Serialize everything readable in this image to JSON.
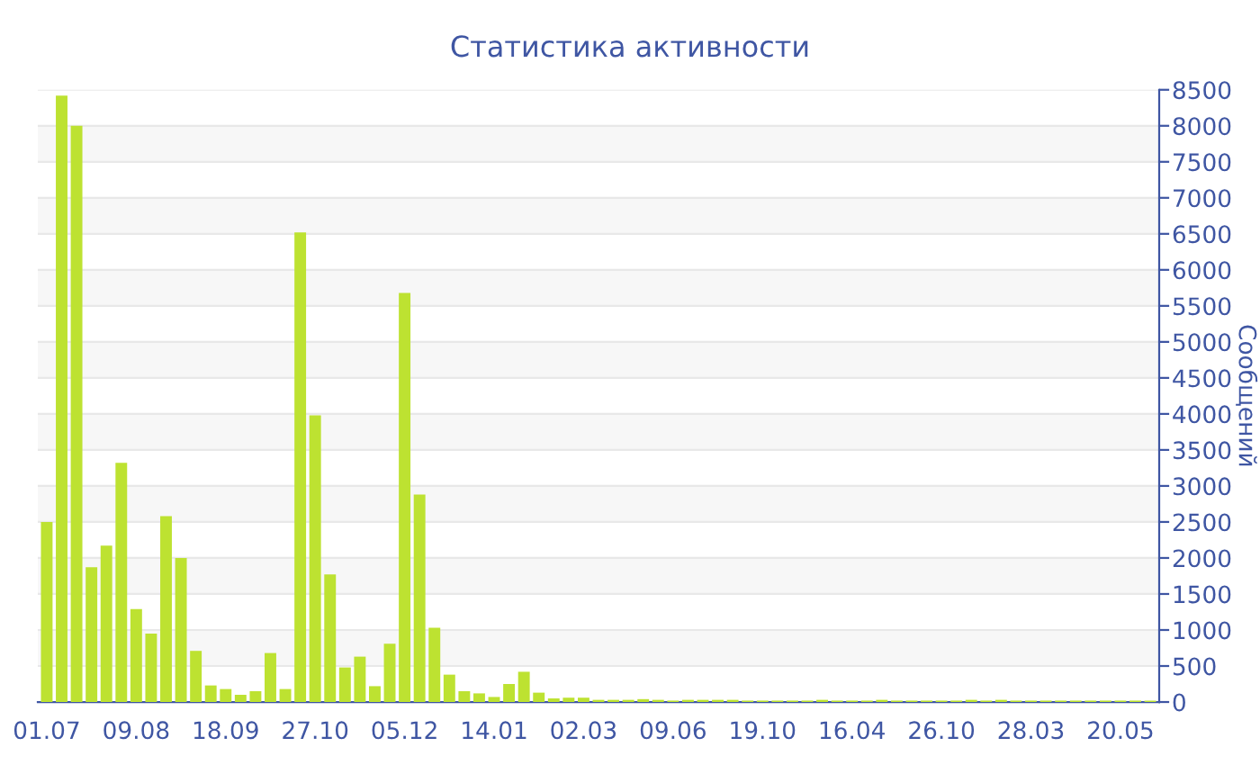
{
  "chart_data": {
    "type": "bar",
    "title": "Статистика активности",
    "ylabel": "Сообщений",
    "categories": [
      "01.07",
      null,
      null,
      null,
      null,
      null,
      "09.08",
      null,
      null,
      null,
      null,
      null,
      "18.09",
      null,
      null,
      null,
      null,
      null,
      "27.10",
      null,
      null,
      null,
      null,
      null,
      "05.12",
      null,
      null,
      null,
      null,
      null,
      "14.01",
      null,
      null,
      null,
      null,
      null,
      "02.03",
      null,
      null,
      null,
      null,
      null,
      "09.06",
      null,
      null,
      null,
      null,
      null,
      "19.10",
      null,
      null,
      null,
      null,
      null,
      "16.04",
      null,
      null,
      null,
      null,
      null,
      "26.10",
      null,
      null,
      null,
      null,
      null,
      "28.03",
      null,
      null,
      null,
      null,
      null,
      "20.05",
      null,
      null
    ],
    "values": [
      2500,
      8420,
      8000,
      1870,
      2170,
      3320,
      1290,
      950,
      2580,
      2000,
      710,
      230,
      180,
      100,
      150,
      680,
      180,
      6520,
      3980,
      1770,
      480,
      630,
      220,
      810,
      5680,
      2880,
      1030,
      380,
      150,
      120,
      70,
      250,
      420,
      130,
      50,
      60,
      60,
      30,
      30,
      30,
      40,
      30,
      20,
      30,
      30,
      30,
      30,
      20,
      20,
      20,
      20,
      20,
      30,
      20,
      20,
      20,
      30,
      20,
      20,
      20,
      20,
      20,
      30,
      20,
      30,
      20,
      20,
      20,
      20,
      20,
      20,
      20,
      20,
      20,
      20
    ],
    "color": "#bde231",
    "ylim": [
      0,
      8500
    ],
    "yticks": [
      0,
      500,
      1000,
      1500,
      2000,
      2500,
      3000,
      3500,
      4000,
      4500,
      5000,
      5500,
      6000,
      6500,
      7000,
      7500,
      8000,
      8500
    ],
    "grid": "y"
  }
}
